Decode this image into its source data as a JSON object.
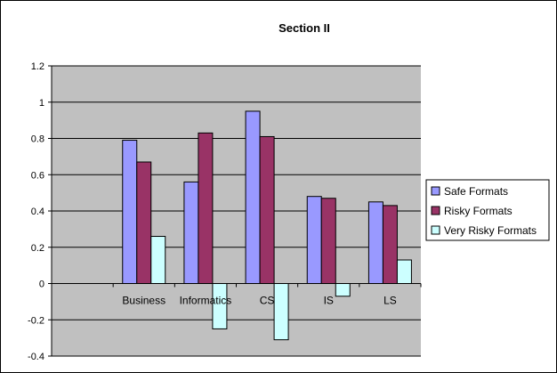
{
  "chart_data": {
    "type": "bar",
    "title": "Section II",
    "categories": [
      "",
      "Business",
      "Informatics",
      "CS",
      "IS",
      "LS"
    ],
    "series": [
      {
        "name": "Safe Formats",
        "values": [
          null,
          0.79,
          0.56,
          0.95,
          0.48,
          0.45
        ],
        "color": "#9999ff"
      },
      {
        "name": "Risky Formats",
        "values": [
          null,
          0.67,
          0.83,
          0.81,
          0.47,
          0.43
        ],
        "color": "#993366"
      },
      {
        "name": "Very Risky Formats",
        "values": [
          null,
          0.26,
          -0.25,
          -0.31,
          -0.07,
          0.13
        ],
        "color": "#ccffff"
      }
    ],
    "ylim": [
      -0.4,
      1.2
    ],
    "yticks": [
      -0.4,
      -0.2,
      0,
      0.2,
      0.4,
      0.6,
      0.8,
      1,
      1.2
    ],
    "ytick_labels": [
      "-0.4",
      "-0.2",
      "0",
      "0.2",
      "0.4",
      "0.6",
      "0.8",
      "1",
      "1.2"
    ],
    "xlabel": "",
    "ylabel": "",
    "grid": true,
    "plot_background": "#c0c0c0",
    "legend_position": "right"
  }
}
